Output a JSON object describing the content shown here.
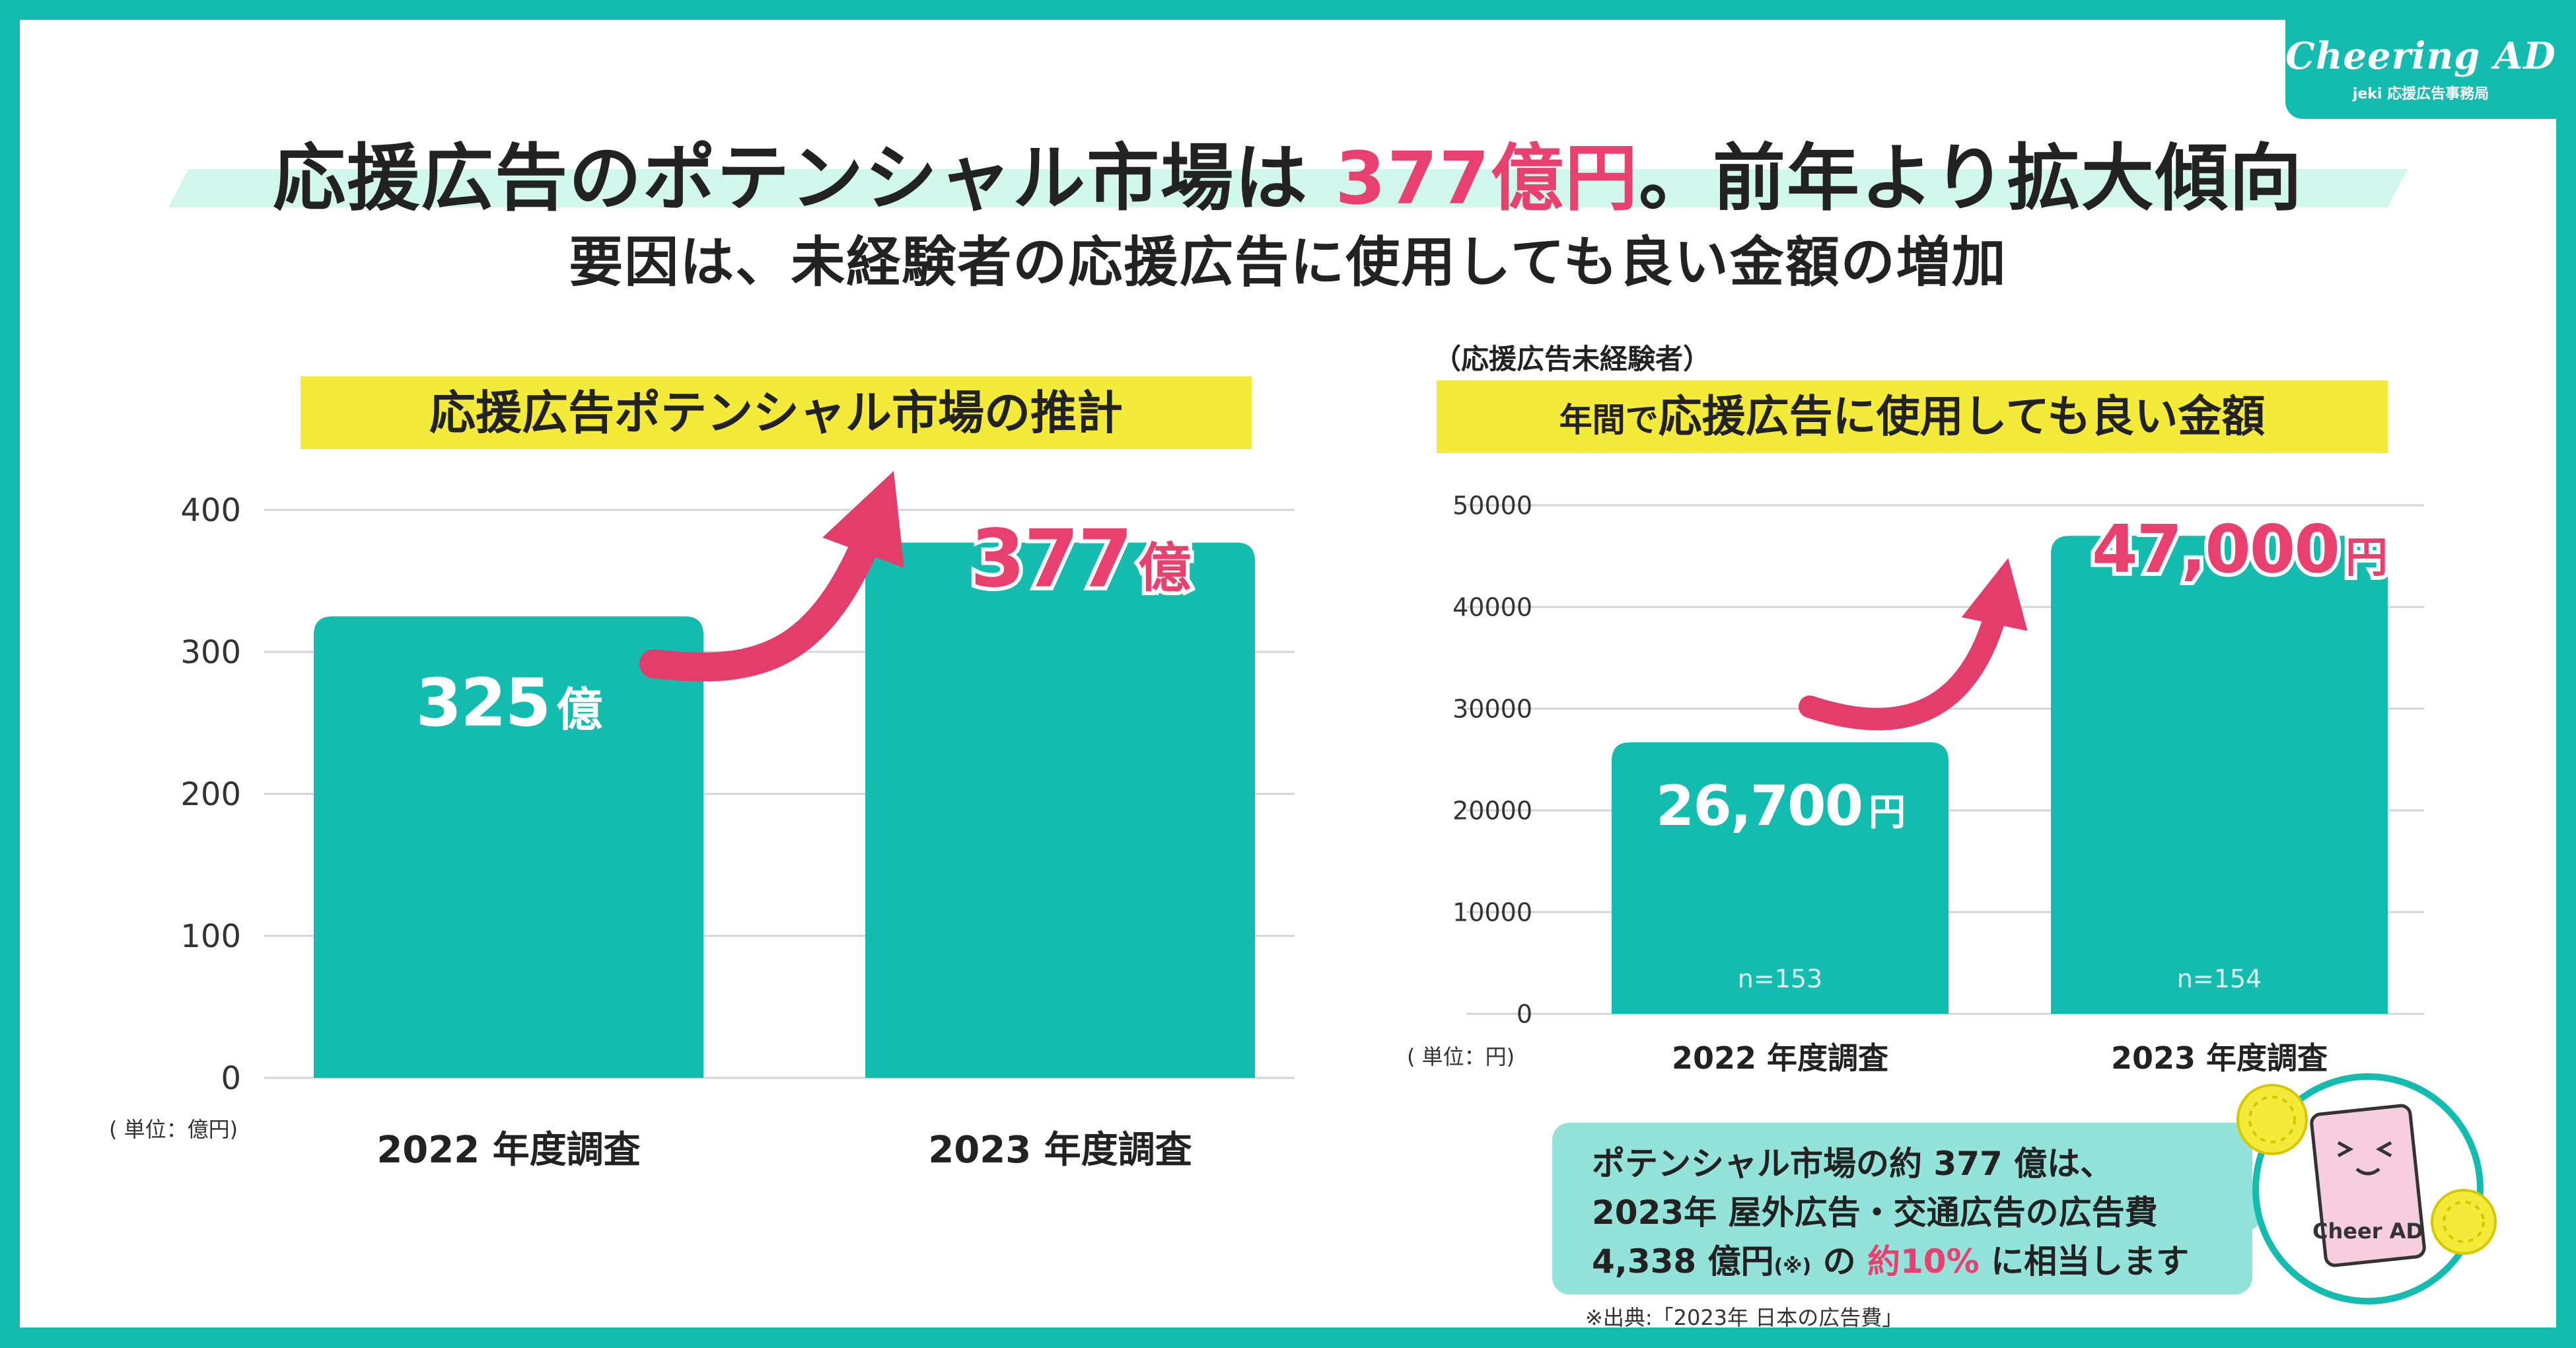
{
  "logo": {
    "brand": "Cheering AD",
    "subtitle": "jeki 応援広告事務局"
  },
  "headline": {
    "pre": "応援広告のポテンシャル市場は ",
    "highlight": "377億円",
    "post": "。前年より拡大傾向",
    "subtitle": "要因は、未経験者の応援広告に使用しても良い金額の増加"
  },
  "left": {
    "chip": "応援広告ポテンシャル市場の推計",
    "unit": "( 単位：億円)"
  },
  "right": {
    "note": "（応援広告未経験者）",
    "chip_pre": "年間で",
    "chip_main": "応援広告に使用しても良い金額",
    "unit": "( 単位：円)"
  },
  "callout": {
    "line1": "ポテンシャル市場の約 377 億は、",
    "line2": "2023年 屋外広告・交通広告の広告費",
    "line3_a": "4,338 億円",
    "line3_b": "(※)",
    "line3_c": " の ",
    "line3_pink": "約10%",
    "line3_d": " に相当します",
    "source": "※出典:「2023年 日本の広告費」"
  },
  "mascot": {
    "text": "Cheer AD"
  },
  "colors": {
    "teal": "#14bcb0",
    "pink": "#e8416f",
    "yellow": "#f4ea3a",
    "callout": "#94e3da"
  },
  "chart_data": [
    {
      "type": "bar",
      "title": "応援広告ポテンシャル市場の推計",
      "ylabel": "億円",
      "categories": [
        "2022 年度調査",
        "2023 年度調査"
      ],
      "values": [
        325,
        377
      ],
      "ylim": [
        0,
        400
      ],
      "yticks": [
        0,
        100,
        200,
        300,
        400
      ],
      "labels": [
        {
          "num": "325",
          "unit": "億"
        },
        {
          "num": "377",
          "unit": "億"
        }
      ]
    },
    {
      "type": "bar",
      "title": "年間で応援広告に使用しても良い金額",
      "ylabel": "円",
      "categories": [
        "2022 年度調査",
        "2023 年度調査"
      ],
      "values": [
        26700,
        47000
      ],
      "ylim": [
        0,
        50000
      ],
      "yticks": [
        0,
        10000,
        20000,
        30000,
        40000,
        50000
      ],
      "labels": [
        {
          "num": "26,700",
          "unit": "円"
        },
        {
          "num": "47,000",
          "unit": "円"
        }
      ],
      "n": [
        "n=153",
        "n=154"
      ]
    }
  ]
}
